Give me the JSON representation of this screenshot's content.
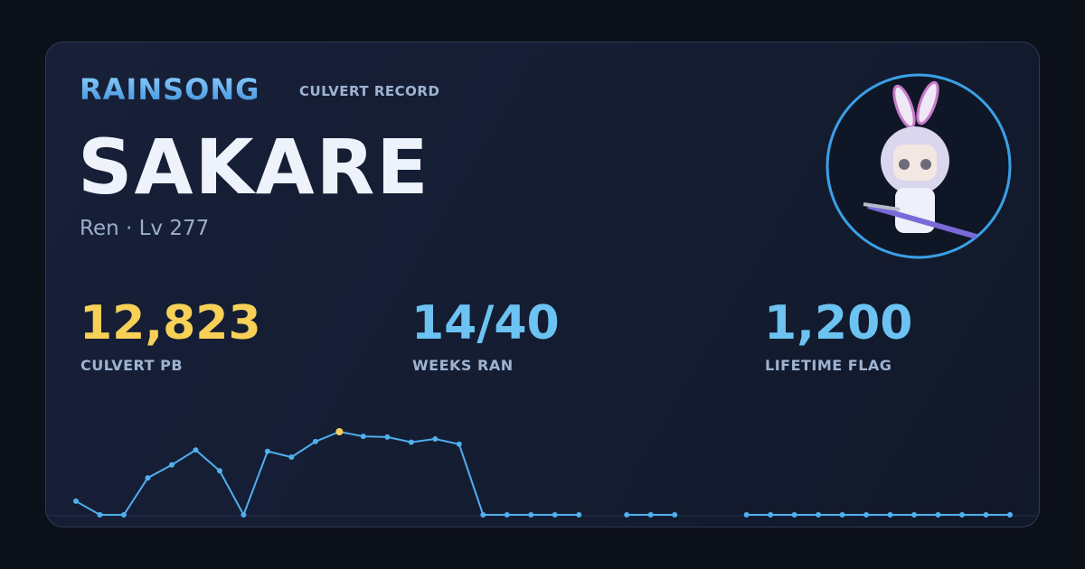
{
  "header": {
    "brand": "RAINSONG",
    "subtitle": "CULVERT RECORD"
  },
  "character": {
    "name": "SAKARE",
    "detail": "Ren · Lv 277"
  },
  "stats": [
    {
      "value": "12,823",
      "label": "CULVERT PB",
      "color": "#f7d157"
    },
    {
      "value": "14/40",
      "label": "WEEKS RAN",
      "color": "#6cc3f2"
    },
    {
      "value": "1,200",
      "label": "LIFETIME FLAG",
      "color": "#6cc3f2"
    }
  ],
  "chart_data": {
    "type": "line",
    "color": "#4fb0ee",
    "highlight_color": "#f5cf5a",
    "values": [
      2100,
      0,
      0,
      5700,
      7700,
      10000,
      6800,
      0,
      9800,
      8900,
      11300,
      12823,
      12100,
      12000,
      11200,
      11700,
      10900,
      0,
      0,
      0,
      0,
      0,
      null,
      0,
      0,
      0,
      null,
      null,
      0,
      0,
      0,
      0,
      0,
      0,
      0,
      0,
      0,
      0,
      0,
      0
    ]
  }
}
